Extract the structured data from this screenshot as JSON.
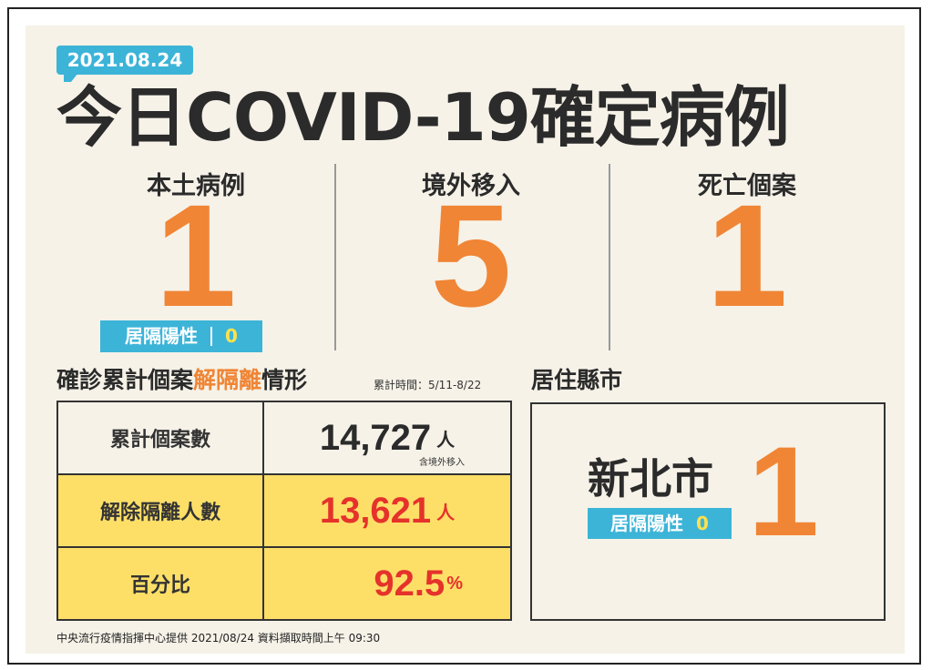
{
  "date": "2021.08.24",
  "title": "今日COVID-19確定病例",
  "stats": [
    {
      "label": "本土病例",
      "value": 1,
      "sub_label": "居隔陽性",
      "sub_value": 0
    },
    {
      "label": "境外移入",
      "value": 5
    },
    {
      "label": "死亡個案",
      "value": 1
    }
  ],
  "cumulative": {
    "heading_prefix": "確診累計個案",
    "heading_highlight": "解隔離",
    "heading_suffix": "情形",
    "period": "累計時間：5/11-8/22",
    "rows": [
      {
        "label": "累計個案數",
        "value": "14,727",
        "unit": "人",
        "note": "含境外移入"
      },
      {
        "label": "解除隔離人數",
        "value": "13,621",
        "unit": "人"
      },
      {
        "label": "百分比",
        "value": 92.5,
        "unit": "%"
      }
    ]
  },
  "residence": {
    "heading": "居住縣市",
    "city": "新北市",
    "count": 1,
    "sub_label": "居隔陽性",
    "sub_value": 0
  },
  "footer": "中央流行疫情指揮中心提供 2021/08/24 資料擷取時間上午 09:30"
}
